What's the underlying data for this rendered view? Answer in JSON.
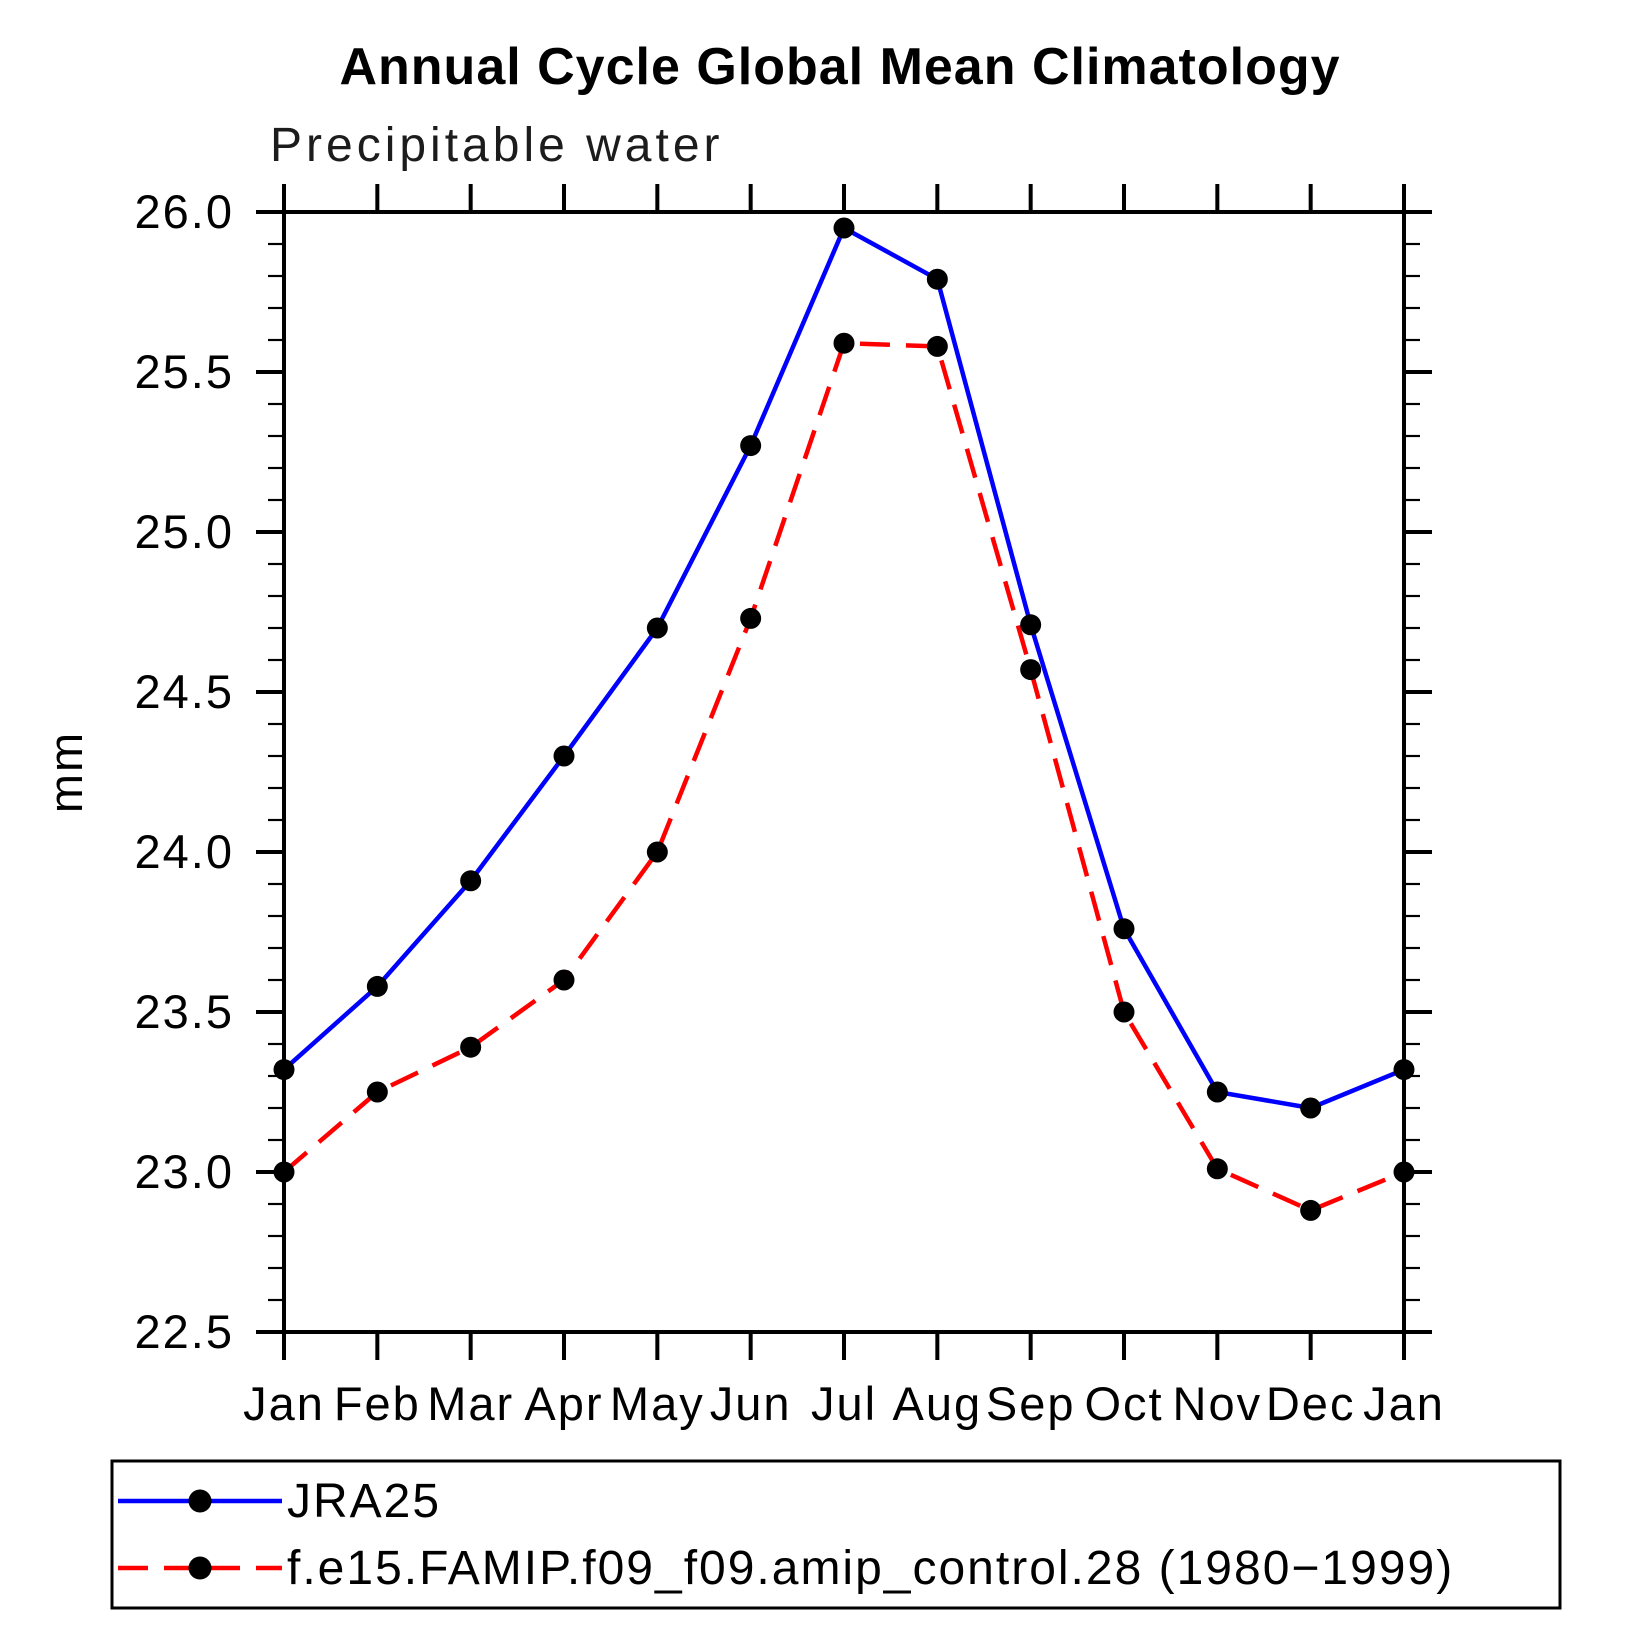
{
  "title": "Annual Cycle Global Mean Climatology",
  "subtitle": "Precipitable water",
  "chart_data": {
    "type": "line",
    "categories": [
      "Jan",
      "Feb",
      "Mar",
      "Apr",
      "May",
      "Jun",
      "Jul",
      "Aug",
      "Sep",
      "Oct",
      "Nov",
      "Dec",
      "Jan"
    ],
    "series": [
      {
        "name": "JRA25",
        "color": "#0000ff",
        "line_style": "solid",
        "marker": "filled-circle",
        "marker_color": "#000000",
        "values": [
          23.32,
          23.58,
          23.91,
          24.3,
          24.7,
          25.27,
          25.95,
          25.79,
          24.71,
          23.76,
          23.25,
          23.2,
          23.32
        ]
      },
      {
        "name": "f.e15.FAMIP.f09_f09.amip_control.28 (1980−1999)",
        "color": "#ff0000",
        "line_style": "dashed",
        "marker": "filled-circle",
        "marker_color": "#000000",
        "values": [
          23.0,
          23.25,
          23.39,
          23.6,
          24.0,
          24.73,
          25.59,
          25.58,
          24.57,
          23.5,
          23.01,
          22.88,
          23.0
        ]
      }
    ],
    "xlabel": "",
    "ylabel": "mm",
    "ylim": [
      22.5,
      26.0
    ],
    "ytick_step": 0.5,
    "ytick_minor_step": 0.1,
    "ytick_labels": [
      "22.5",
      "23.0",
      "23.5",
      "24.0",
      "24.5",
      "25.0",
      "25.5",
      "26.0"
    ],
    "grid": false,
    "legend_position": "bottom-left-box",
    "axis_color": "#000000",
    "background": "#ffffff"
  }
}
